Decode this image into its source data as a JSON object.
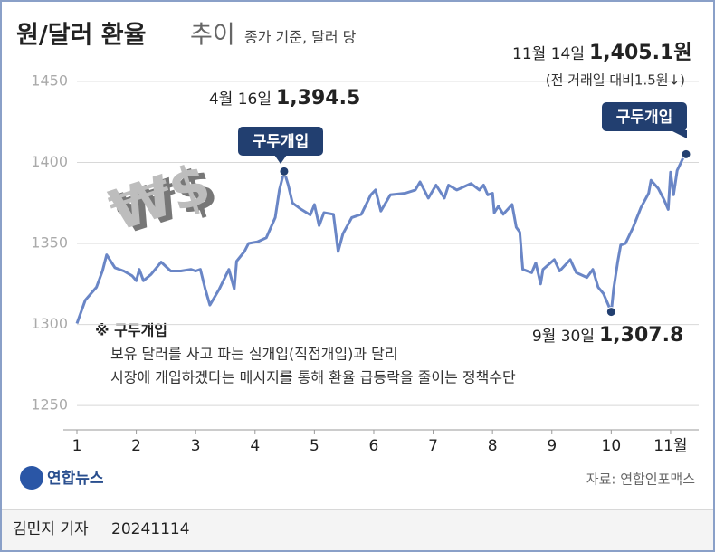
{
  "chart_data": {
    "type": "line",
    "title": "원/달러 환율",
    "title_suffix": "추이",
    "subtitle": "종가 기준, 달러 당",
    "icon_text": "₩$",
    "x": [
      1.0,
      1.14,
      1.33,
      1.43,
      1.5,
      1.64,
      1.79,
      1.93,
      2.0,
      2.05,
      2.12,
      2.25,
      2.42,
      2.58,
      2.75,
      2.92,
      3.0,
      3.08,
      3.16,
      3.24,
      3.4,
      3.56,
      3.65,
      3.69,
      3.82,
      3.89,
      4.04,
      4.19,
      4.34,
      4.41,
      4.49,
      4.56,
      4.63,
      4.78,
      4.93,
      5.0,
      5.08,
      5.16,
      5.32,
      5.4,
      5.48,
      5.63,
      5.79,
      5.95,
      6.03,
      6.12,
      6.28,
      6.53,
      6.7,
      6.78,
      6.92,
      7.0,
      7.05,
      7.19,
      7.26,
      7.4,
      7.58,
      7.64,
      7.78,
      7.85,
      7.92,
      8.0,
      8.03,
      8.1,
      8.18,
      8.33,
      8.4,
      8.46,
      8.51,
      8.66,
      8.73,
      8.81,
      8.85,
      9.04,
      9.13,
      9.31,
      9.41,
      9.59,
      9.69,
      9.78,
      9.87,
      10.0,
      10.04,
      10.11,
      10.16,
      10.24,
      10.37,
      10.5,
      10.63,
      10.67,
      10.79,
      10.89,
      10.96,
      11.0,
      11.05,
      11.11,
      11.2,
      11.26
    ],
    "values": [
      1300.6,
      1315,
      1323,
      1333,
      1343,
      1335,
      1333,
      1330,
      1327,
      1334,
      1327,
      1331,
      1338.5,
      1333,
      1333,
      1334,
      1333,
      1334,
      1322,
      1312,
      1322,
      1334,
      1322,
      1339,
      1345,
      1350,
      1351,
      1353.5,
      1366,
      1383,
      1394.5,
      1386,
      1375,
      1371,
      1367.6,
      1374,
      1361,
      1369,
      1368,
      1345,
      1356,
      1366,
      1368,
      1380,
      1383,
      1370,
      1380,
      1381,
      1383,
      1388,
      1378,
      1383,
      1386,
      1378,
      1386,
      1383,
      1386,
      1387,
      1383,
      1386,
      1380,
      1381,
      1369,
      1373,
      1368,
      1374,
      1360,
      1357,
      1334,
      1332,
      1338,
      1325,
      1334,
      1340,
      1333,
      1340,
      1332,
      1329,
      1334,
      1323,
      1319,
      1307.8,
      1322,
      1339,
      1349,
      1350,
      1360,
      1372,
      1381,
      1389,
      1384,
      1377,
      1371,
      1394,
      1380,
      1395,
      1402,
      1405.1
    ],
    "color": "#6a86c6",
    "marker_color": "#223f70",
    "xlim": [
      1,
      11.26
    ],
    "xticks": [
      1,
      2,
      3,
      4,
      5,
      6,
      7,
      8,
      9,
      10,
      {
        "value": 11,
        "label": "11월"
      }
    ],
    "ylim": [
      1235,
      1460
    ],
    "yticks": [
      1250,
      1300,
      1350,
      1400,
      1450
    ],
    "grid": true,
    "annotations": [
      {
        "x": 4.49,
        "date": "4월 16일",
        "value": "1,394.5",
        "callout": "구두개입"
      },
      {
        "x": 10.0,
        "date": "9월 30일",
        "value": "1,307.8"
      },
      {
        "x": 11.26,
        "date": "11월 14일",
        "value": "1,405.1원",
        "note": "(전 거래일 대비1.5원↓)",
        "callout": "구두개입"
      }
    ],
    "footnote": {
      "title": "※ 구두개입",
      "lines": [
        "보유 달러를 사고 파는 실개입(직접개입)과 달리",
        "시장에 개입하겠다는 메시지를 통해 환율 급등락을 줄이는 정책수단"
      ]
    },
    "source": "자료: 연합인포맥스",
    "logo": "연합뉴스",
    "byline": "김민지 기자",
    "date": "20241114"
  }
}
